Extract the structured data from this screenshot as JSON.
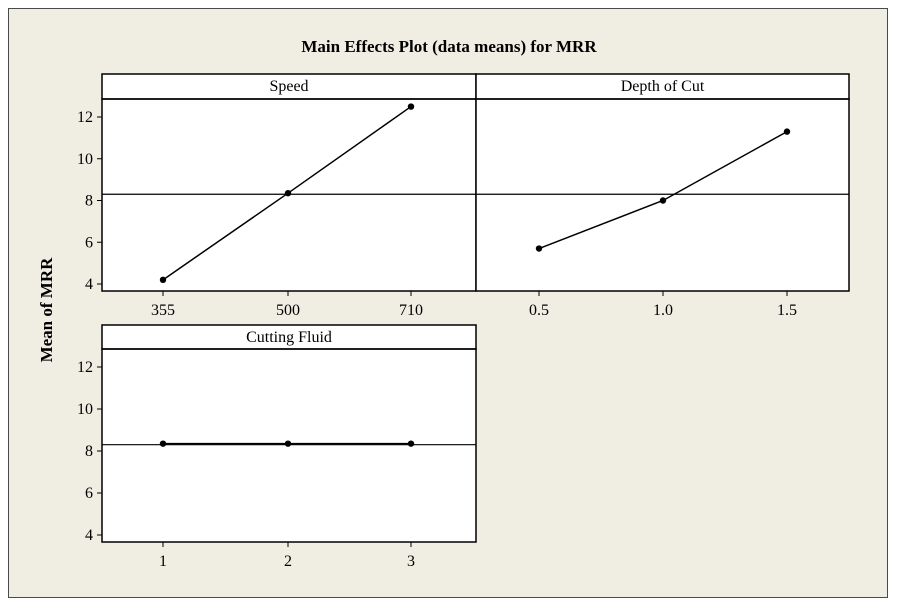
{
  "chart_data": {
    "type": "line",
    "title": "Main Effects Plot (data means) for MRR",
    "ylabel": "Mean of MRR",
    "ylim": [
      4,
      12
    ],
    "yticks": [
      4,
      6,
      8,
      10,
      12
    ],
    "grand_mean": 8.3,
    "panels": [
      {
        "name": "Speed",
        "categories": [
          "355",
          "500",
          "710"
        ],
        "values": [
          4.2,
          8.35,
          12.5
        ]
      },
      {
        "name": "Depth of Cut",
        "categories": [
          "0.5",
          "1.0",
          "1.5"
        ],
        "values": [
          5.7,
          8.0,
          11.3
        ]
      },
      {
        "name": "Cutting Fluid",
        "categories": [
          "1",
          "2",
          "3"
        ],
        "values": [
          8.35,
          8.35,
          8.35
        ]
      }
    ]
  }
}
